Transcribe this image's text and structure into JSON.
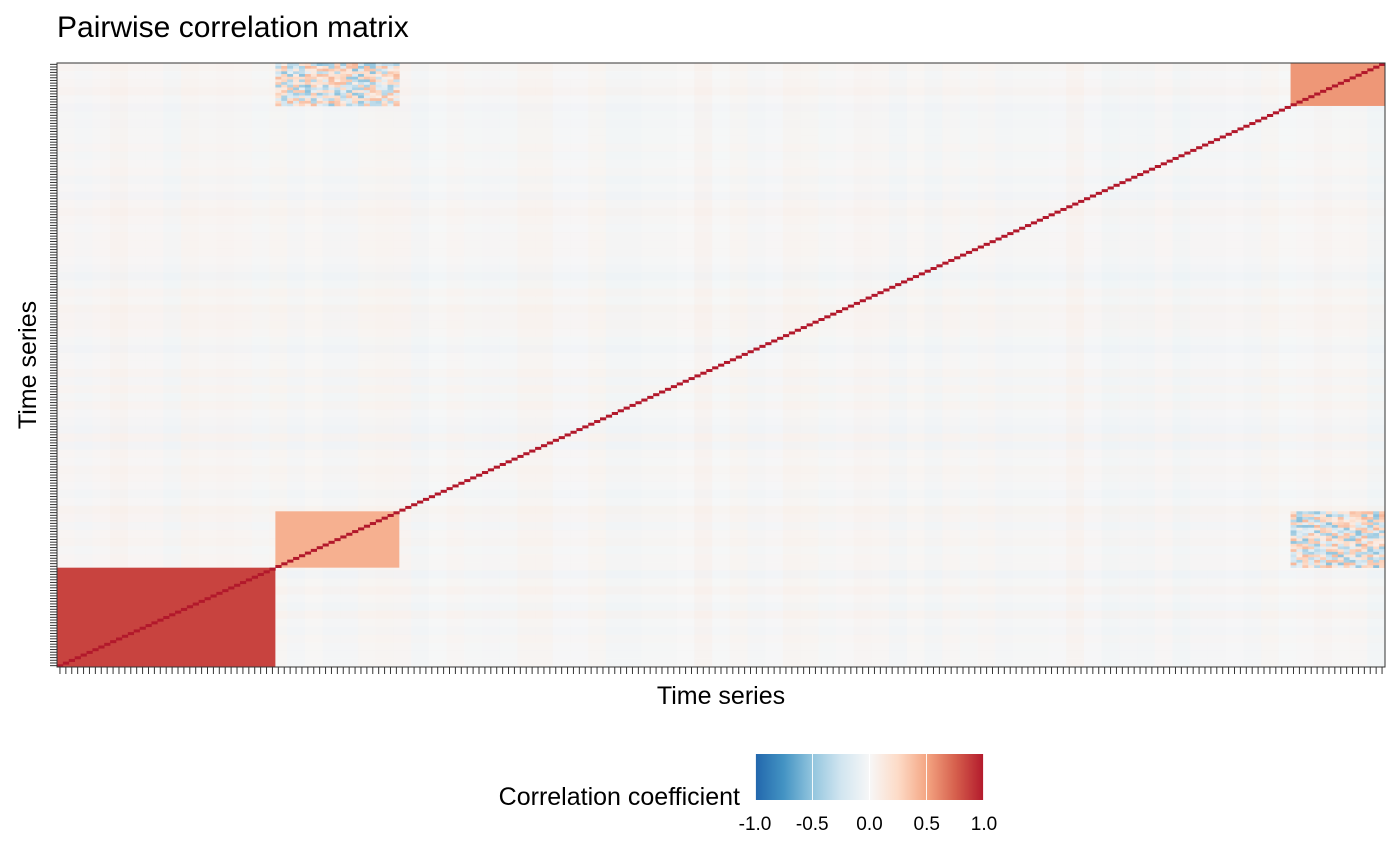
{
  "chart_data": {
    "type": "heatmap",
    "title": "Pairwise correlation matrix",
    "xlabel": "Time series",
    "ylabel": "Time series",
    "n_series": 225,
    "diagonal_value": 1.0,
    "background_value": 0.0,
    "blocks": [
      {
        "name": "first-series-group",
        "x_range": [
          1,
          37
        ],
        "y_range": [
          1,
          37
        ],
        "value": 0.85
      },
      {
        "name": "upper-right-cross-block",
        "x_range": [
          210,
          225
        ],
        "y_range": [
          210,
          225
        ],
        "value": 0.55
      },
      {
        "name": "middle-cross-block",
        "x_range": [
          38,
          58
        ],
        "y_range": [
          38,
          58
        ],
        "value": 0.45
      }
    ],
    "off_diagonal_blocks": [
      {
        "x_range": [
          38,
          58
        ],
        "y_range": [
          210,
          225
        ],
        "value": -0.35
      },
      {
        "x_range": [
          210,
          225
        ],
        "y_range": [
          38,
          58
        ],
        "value": -0.35
      }
    ],
    "legend": {
      "title": "Correlation coefficient",
      "ticks": [
        -1.0,
        -0.5,
        0.0,
        0.5,
        1.0
      ],
      "tick_labels": [
        "-1.0",
        "-0.5",
        "0.0",
        "0.5",
        "1.0"
      ],
      "limits": [
        -1.0,
        1.0
      ],
      "position": "bottom"
    },
    "colors": {
      "low": "#2166ac",
      "mid": "#f7f7f7",
      "high": "#b2182b"
    }
  }
}
